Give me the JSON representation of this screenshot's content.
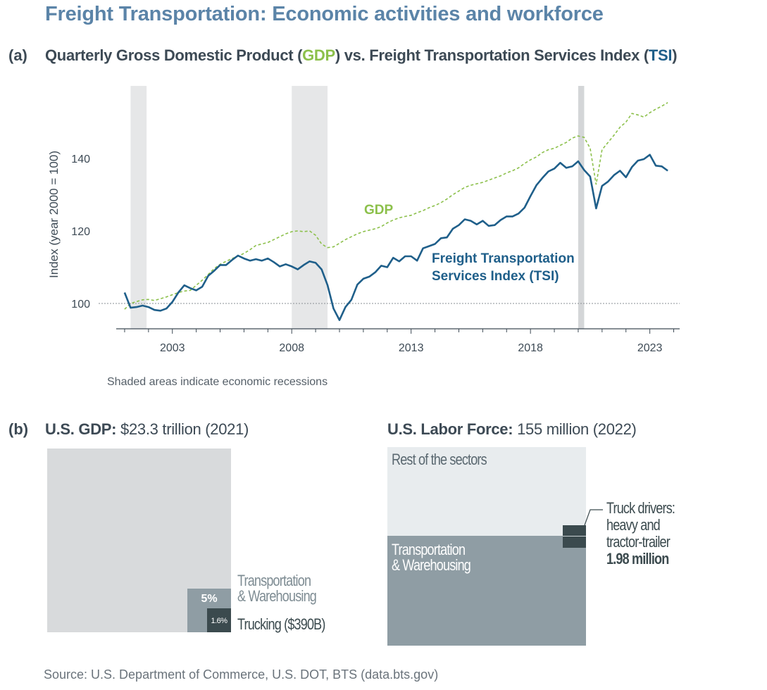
{
  "main_title": "Freight Transportation: Economic activities and workforce",
  "panel_a": {
    "letter": "(a)",
    "title_prefix": "Quarterly Gross Domestic Product (",
    "gdp_abbr": "GDP",
    "title_mid": ") vs. Freight Transportation Services Index (",
    "tsi_abbr": "TSI",
    "title_suffix": ")",
    "note": "Shaded areas indicate economic recessions"
  },
  "colors": {
    "gdp": "#8cc04b",
    "tsi": "#1f5f8a",
    "recession": "#e6e7e8",
    "text": "#3d4a55"
  },
  "chart_data": {
    "type": "line",
    "title": "Quarterly Gross Domestic Product (GDP) vs. Freight Transportation Services Index (TSI)",
    "ylabel": "Index (year 2000 = 100)",
    "xlabel": "",
    "xlim": [
      2000.5,
      2024.25
    ],
    "ylim": [
      93,
      160
    ],
    "x_ticks": [
      2003,
      2008,
      2013,
      2018,
      2023
    ],
    "x_tick_labels": [
      "2003",
      "2008",
      "2013",
      "2018",
      "2023"
    ],
    "y_ticks": [
      100,
      120,
      140
    ],
    "y_tick_labels": [
      "100",
      "120",
      "140"
    ],
    "reference_line": 100,
    "grid": false,
    "recessions": [
      [
        2001.25,
        2001.92
      ],
      [
        2008.0,
        2009.5
      ],
      [
        2020.0,
        2020.25
      ]
    ],
    "series": [
      {
        "name": "GDP",
        "label": "GDP",
        "style": "dashed",
        "x": [
          2001.0,
          2001.25,
          2001.5,
          2001.75,
          2002.0,
          2002.25,
          2002.5,
          2002.75,
          2003.0,
          2003.25,
          2003.5,
          2003.75,
          2004.0,
          2004.25,
          2004.5,
          2004.75,
          2005.0,
          2005.25,
          2005.5,
          2005.75,
          2006.0,
          2006.25,
          2006.5,
          2006.75,
          2007.0,
          2007.25,
          2007.5,
          2007.75,
          2008.0,
          2008.25,
          2008.5,
          2008.75,
          2009.0,
          2009.25,
          2009.5,
          2009.75,
          2010.0,
          2010.25,
          2010.5,
          2010.75,
          2011.0,
          2011.25,
          2011.5,
          2011.75,
          2012.0,
          2012.25,
          2012.5,
          2012.75,
          2013.0,
          2013.25,
          2013.5,
          2013.75,
          2014.0,
          2014.25,
          2014.5,
          2014.75,
          2015.0,
          2015.25,
          2015.5,
          2015.75,
          2016.0,
          2016.25,
          2016.5,
          2016.75,
          2017.0,
          2017.25,
          2017.5,
          2017.75,
          2018.0,
          2018.25,
          2018.5,
          2018.75,
          2019.0,
          2019.25,
          2019.5,
          2019.75,
          2020.0,
          2020.25,
          2020.5,
          2020.75,
          2021.0,
          2021.25,
          2021.5,
          2021.75,
          2022.0,
          2022.25,
          2022.5,
          2022.75,
          2023.0,
          2023.25,
          2023.5,
          2023.75
        ],
        "values": [
          98.4,
          100.0,
          100.5,
          101.0,
          101.1,
          100.8,
          101.3,
          101.8,
          102.4,
          103.0,
          103.4,
          103.6,
          105.0,
          106.4,
          108.0,
          109.6,
          110.8,
          111.6,
          112.4,
          113.0,
          113.8,
          114.8,
          116.0,
          116.4,
          116.8,
          117.6,
          118.4,
          119.2,
          119.8,
          120.0,
          119.8,
          120.0,
          118.8,
          116.4,
          115.4,
          115.6,
          116.6,
          117.6,
          118.4,
          119.2,
          119.8,
          120.2,
          120.6,
          121.2,
          122.2,
          123.0,
          123.6,
          124.0,
          124.3,
          125.0,
          125.6,
          126.4,
          127.0,
          127.8,
          128.8,
          130.0,
          131.0,
          132.0,
          132.6,
          133.0,
          133.4,
          134.0,
          134.6,
          135.2,
          136.0,
          136.6,
          137.4,
          138.6,
          139.6,
          140.4,
          141.6,
          142.4,
          142.8,
          143.6,
          144.4,
          145.6,
          146.2,
          145.8,
          142.8,
          132.8,
          142.4,
          144.4,
          146.4,
          148.6,
          150.0,
          152.4,
          152.0,
          151.4,
          152.6,
          153.6,
          154.4,
          155.4
        ],
        "color": "#8cc04b"
      },
      {
        "name": "Freight Transportation Services Index (TSI)",
        "label": "Freight Transportation Services Index (TSI)",
        "style": "solid",
        "x": [
          2001.0,
          2001.25,
          2001.5,
          2001.75,
          2002.0,
          2002.25,
          2002.5,
          2002.75,
          2003.0,
          2003.25,
          2003.5,
          2003.75,
          2004.0,
          2004.25,
          2004.5,
          2004.75,
          2005.0,
          2005.25,
          2005.5,
          2005.75,
          2006.0,
          2006.25,
          2006.5,
          2006.75,
          2007.0,
          2007.25,
          2007.5,
          2007.75,
          2008.0,
          2008.25,
          2008.5,
          2008.75,
          2009.0,
          2009.25,
          2009.5,
          2009.75,
          2010.0,
          2010.25,
          2010.5,
          2010.75,
          2011.0,
          2011.25,
          2011.5,
          2011.75,
          2012.0,
          2012.25,
          2012.5,
          2012.75,
          2013.0,
          2013.25,
          2013.5,
          2013.75,
          2014.0,
          2014.25,
          2014.5,
          2014.75,
          2015.0,
          2015.25,
          2015.5,
          2015.75,
          2016.0,
          2016.25,
          2016.5,
          2016.75,
          2017.0,
          2017.25,
          2017.5,
          2017.75,
          2018.0,
          2018.25,
          2018.5,
          2018.75,
          2019.0,
          2019.25,
          2019.5,
          2019.75,
          2020.0,
          2020.25,
          2020.5,
          2020.75,
          2021.0,
          2021.25,
          2021.5,
          2021.75,
          2022.0,
          2022.25,
          2022.5,
          2022.75,
          2023.0,
          2023.25,
          2023.5,
          2023.75
        ],
        "values": [
          103.0,
          98.8,
          99.0,
          99.4,
          99.0,
          98.2,
          98.0,
          98.6,
          100.4,
          103.0,
          105.0,
          104.2,
          103.6,
          104.6,
          107.6,
          109.0,
          110.6,
          110.6,
          112.0,
          113.2,
          112.4,
          111.8,
          112.2,
          111.8,
          112.4,
          111.4,
          110.2,
          110.8,
          110.2,
          109.4,
          110.6,
          111.6,
          111.2,
          109.4,
          105.0,
          98.6,
          95.4,
          99.0,
          101.0,
          105.2,
          106.8,
          107.4,
          108.6,
          110.4,
          110.0,
          112.6,
          111.6,
          113.0,
          113.0,
          111.8,
          115.2,
          115.8,
          116.4,
          118.0,
          118.2,
          120.6,
          121.6,
          123.2,
          122.8,
          121.8,
          122.8,
          121.4,
          121.6,
          123.0,
          124.0,
          124.0,
          124.8,
          126.4,
          129.6,
          132.6,
          134.6,
          136.4,
          137.2,
          138.8,
          137.4,
          137.8,
          139.2,
          136.8,
          135.0,
          126.2,
          132.4,
          133.6,
          135.4,
          136.6,
          134.8,
          137.6,
          139.4,
          139.8,
          141.0,
          138.0,
          137.8,
          136.6
        ],
        "color": "#1f5f8a"
      }
    ]
  },
  "panel_b": {
    "letter": "(b)",
    "gdp": {
      "title_bold": "U.S. GDP:",
      "title_rest": " $23.3 trillion (2021)",
      "transport_pct_label": "5%",
      "trucking_pct_label": "1.6%",
      "transport_share": 0.05,
      "trucking_share": 0.016,
      "transport_label_line1": "Transportation",
      "transport_label_line2": "& Warehousing",
      "trucking_label": "Trucking ($390B)"
    },
    "labor": {
      "title_bold": "U.S. Labor Force:",
      "title_rest": " 155 million (2022)",
      "rest_label": "Rest of the sectors",
      "transport_label_line1": "Transportation",
      "transport_label_line2": "& Warehousing",
      "drivers_line1": "Truck drivers:",
      "drivers_line2": "heavy and",
      "drivers_line3": "tractor-trailer",
      "drivers_value": "1.98 million"
    }
  },
  "source": "Source:  U.S. Department of Commerce, U.S. DOT, BTS (data.bts.gov)"
}
